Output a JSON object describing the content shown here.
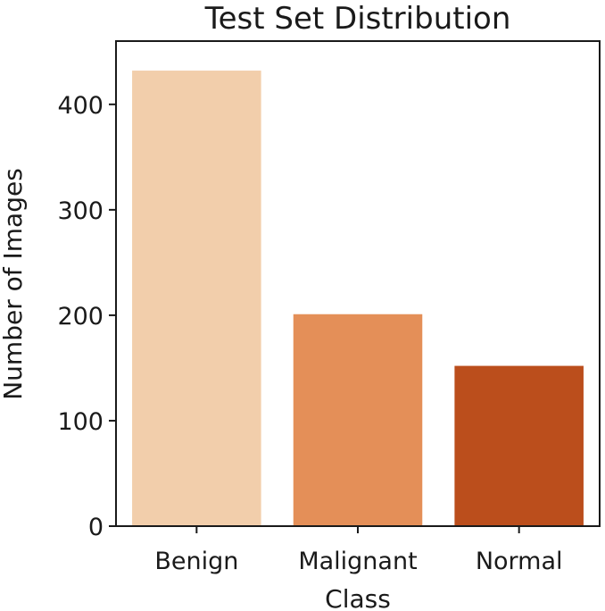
{
  "chart_data": {
    "type": "bar",
    "title": "Test Set Distribution",
    "xlabel": "Class",
    "ylabel": "Number of Images",
    "categories": [
      "Benign",
      "Malignant",
      "Normal"
    ],
    "values": [
      432,
      201,
      152
    ],
    "colors": [
      "#f2ceab",
      "#e48f58",
      "#bb4e1c"
    ],
    "ylim": [
      0,
      460
    ],
    "yticks": [
      0,
      100,
      200,
      300,
      400
    ],
    "grid": false,
    "legend": "none"
  }
}
